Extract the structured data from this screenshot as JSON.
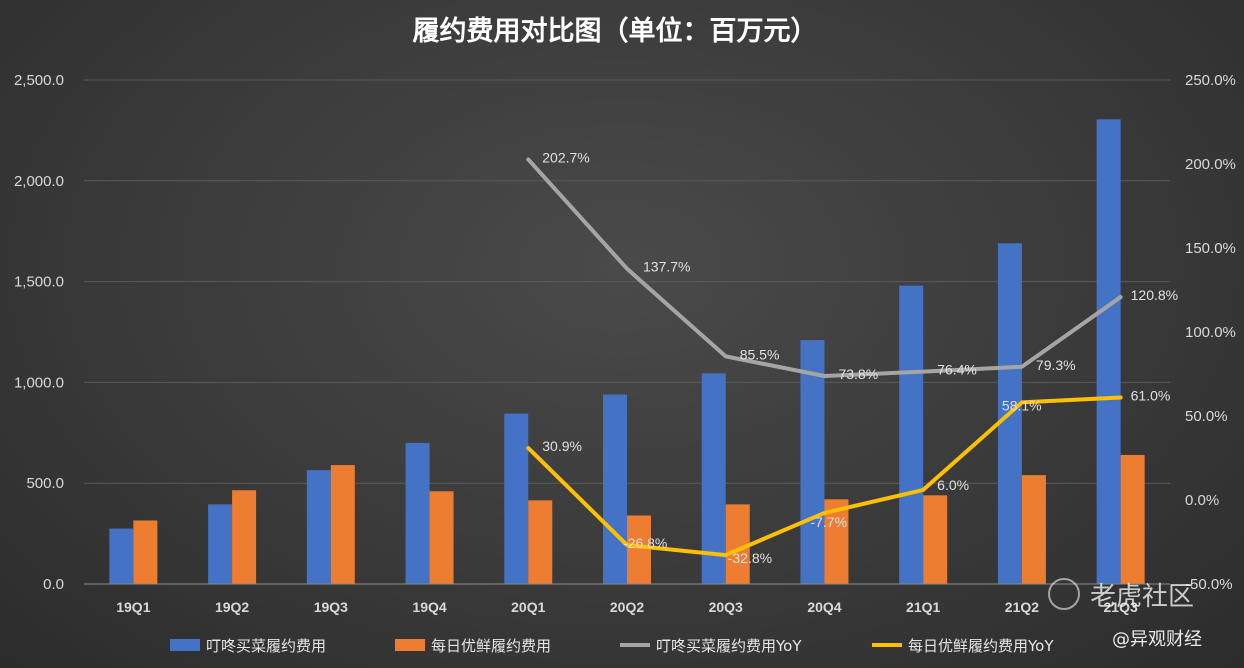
{
  "chart_data": {
    "type": "bar",
    "title": "履约费用对比图（单位：百万元）",
    "categories": [
      "19Q1",
      "19Q2",
      "19Q3",
      "19Q4",
      "20Q1",
      "20Q2",
      "20Q3",
      "20Q4",
      "21Q1",
      "21Q2",
      "21Q3"
    ],
    "y_left": {
      "ylim": [
        0,
        2500
      ],
      "ticks": [
        "0.0",
        "500.0",
        "1,000.0",
        "1,500.0",
        "2,000.0",
        "2,500.0"
      ]
    },
    "y_right": {
      "ylim": [
        -50,
        250
      ],
      "ticks": [
        "-50.0%",
        "0.0%",
        "50.0%",
        "100.0%",
        "150.0%",
        "200.0%",
        "250.0%"
      ]
    },
    "series": [
      {
        "name": "叮咚买菜履约费用",
        "type": "bar",
        "axis": "left",
        "color": "#4472c4",
        "values": [
          275,
          395,
          565,
          700,
          845,
          940,
          1045,
          1210,
          1480,
          1690,
          2305
        ]
      },
      {
        "name": "每日优鲜履约费用",
        "type": "bar",
        "axis": "left",
        "color": "#ed7d31",
        "values": [
          315,
          465,
          590,
          460,
          415,
          340,
          395,
          420,
          440,
          540,
          640
        ]
      },
      {
        "name": "叮咚买菜履约费用YoY",
        "type": "line",
        "axis": "right",
        "color": "#a5a5a5",
        "values": [
          null,
          null,
          null,
          null,
          202.7,
          137.7,
          85.5,
          73.8,
          76.4,
          79.3,
          120.8
        ],
        "labels": [
          null,
          null,
          null,
          null,
          "202.7%",
          "137.7%",
          "85.5%",
          "73.8%",
          "76.4%",
          "79.3%",
          "120.8%"
        ]
      },
      {
        "name": "每日优鲜履约费用YoY",
        "type": "line",
        "axis": "right",
        "color": "#ffc000",
        "values": [
          null,
          null,
          null,
          null,
          30.9,
          -26.8,
          -32.8,
          -7.7,
          6.0,
          58.1,
          61.0
        ],
        "labels": [
          null,
          null,
          null,
          null,
          "30.9%",
          "-26.8%",
          "-32.8%",
          "-7.7%",
          "6.0%",
          "58.1%",
          "61.0%"
        ]
      }
    ],
    "grid": true,
    "legend": "bottom"
  },
  "watermark": {
    "brand": "老虎社区",
    "handle": "@异观财经"
  },
  "colors": {
    "background": "#3a3a3a",
    "grid": "#5a5a5a"
  }
}
